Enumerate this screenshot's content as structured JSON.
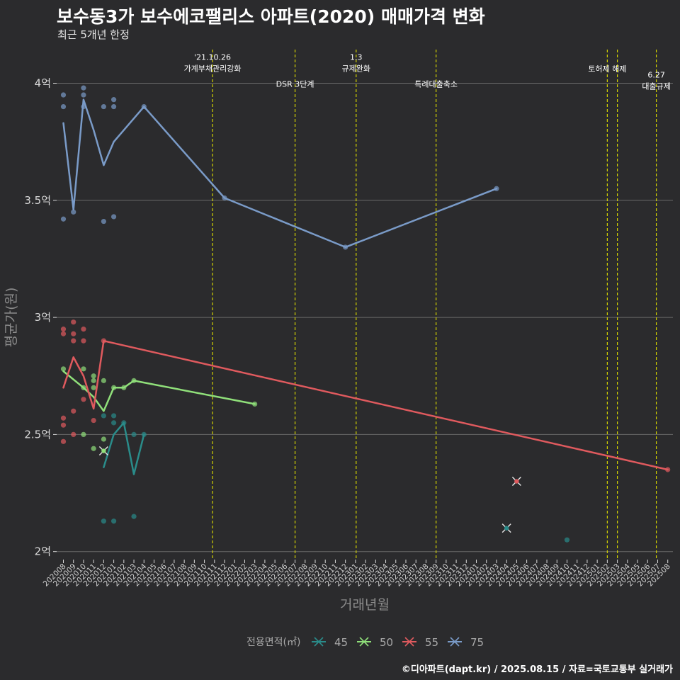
{
  "header": {
    "title": "보수동3가 보수에코팰리스 아파트(2020) 매매가격 변화",
    "subtitle": "최근 5개년 한정",
    "caption": "©디아파트(dapt.kr) / 2025.08.15 / 자료=국토교통부 실거래가"
  },
  "chart_data": {
    "type": "line",
    "xlabel": "거래년월",
    "ylabel": "평균가(원)",
    "ylim": [
      1.95,
      4.2
    ],
    "yticks": [
      {
        "value": 2.0,
        "label": "2억"
      },
      {
        "value": 2.5,
        "label": "2.5억"
      },
      {
        "value": 3.0,
        "label": "3억"
      },
      {
        "value": 3.5,
        "label": "3.5억"
      },
      {
        "value": 4.0,
        "label": "4억"
      }
    ],
    "x_start": "2020-08",
    "x_end": "2025-08",
    "grid": true,
    "legend": {
      "title": "전용면적(㎡)",
      "placement": "bottom",
      "entries": [
        {
          "label": "45",
          "color": "#2a8c8a"
        },
        {
          "label": "50",
          "color": "#90e07a"
        },
        {
          "label": "55",
          "color": "#e05a5e"
        },
        {
          "label": "75",
          "color": "#7a9bc8"
        }
      ]
    },
    "series": [
      {
        "name": "45",
        "color": "#2a8c8a",
        "line": [
          [
            "2020-12",
            2.36
          ],
          [
            "2021-01",
            2.5
          ],
          [
            "2021-02",
            2.55
          ],
          [
            "2021-03",
            2.33
          ],
          [
            "2021-04",
            2.5
          ]
        ],
        "points": [
          [
            "2020-12",
            2.58
          ],
          [
            "2020-12",
            2.13
          ],
          [
            "2021-01",
            2.58
          ],
          [
            "2021-01",
            2.55
          ],
          [
            "2021-01",
            2.13
          ],
          [
            "2021-02",
            2.55
          ],
          [
            "2021-03",
            2.5
          ],
          [
            "2021-03",
            2.15
          ],
          [
            "2021-04",
            2.5
          ],
          [
            "2024-10",
            2.05
          ]
        ],
        "crosses": [
          [
            "2024-04",
            2.1
          ]
        ]
      },
      {
        "name": "50",
        "color": "#90e07a",
        "line": [
          [
            "2020-08",
            2.77
          ],
          [
            "2020-10",
            2.7
          ],
          [
            "2020-11",
            2.66
          ],
          [
            "2020-12",
            2.6
          ],
          [
            "2021-01",
            2.7
          ],
          [
            "2021-02",
            2.7
          ],
          [
            "2021-03",
            2.73
          ],
          [
            "2022-03",
            2.63
          ]
        ],
        "points": [
          [
            "2020-08",
            2.78
          ],
          [
            "2020-10",
            2.78
          ],
          [
            "2020-10",
            2.7
          ],
          [
            "2020-10",
            2.5
          ],
          [
            "2020-11",
            2.75
          ],
          [
            "2020-11",
            2.73
          ],
          [
            "2020-11",
            2.7
          ],
          [
            "2020-11",
            2.44
          ],
          [
            "2020-12",
            2.73
          ],
          [
            "2020-12",
            2.48
          ],
          [
            "2021-01",
            2.7
          ],
          [
            "2021-02",
            2.7
          ],
          [
            "2021-03",
            2.73
          ],
          [
            "2022-03",
            2.63
          ]
        ],
        "crosses": [
          [
            "2020-12",
            2.43
          ]
        ]
      },
      {
        "name": "55",
        "color": "#e05a5e",
        "line": [
          [
            "2020-08",
            2.7
          ],
          [
            "2020-09",
            2.83
          ],
          [
            "2020-10",
            2.75
          ],
          [
            "2020-11",
            2.61
          ],
          [
            "2020-12",
            2.9
          ],
          [
            "2025-08",
            2.35
          ]
        ],
        "points": [
          [
            "2020-08",
            2.95
          ],
          [
            "2020-08",
            2.93
          ],
          [
            "2020-08",
            2.57
          ],
          [
            "2020-08",
            2.54
          ],
          [
            "2020-08",
            2.47
          ],
          [
            "2020-09",
            2.98
          ],
          [
            "2020-09",
            2.93
          ],
          [
            "2020-09",
            2.9
          ],
          [
            "2020-09",
            2.6
          ],
          [
            "2020-09",
            2.5
          ],
          [
            "2020-10",
            2.95
          ],
          [
            "2020-10",
            2.9
          ],
          [
            "2020-10",
            2.65
          ],
          [
            "2020-11",
            2.56
          ],
          [
            "2020-12",
            2.9
          ],
          [
            "2025-08",
            2.35
          ]
        ],
        "crosses": [
          [
            "2024-05",
            2.3
          ]
        ]
      },
      {
        "name": "75",
        "color": "#7a9bc8",
        "line": [
          [
            "2020-08",
            3.83
          ],
          [
            "2020-09",
            3.46
          ],
          [
            "2020-10",
            3.93
          ],
          [
            "2020-11",
            3.8
          ],
          [
            "2020-12",
            3.65
          ],
          [
            "2021-01",
            3.75
          ],
          [
            "2021-04",
            3.9
          ],
          [
            "2021-12",
            3.51
          ],
          [
            "2022-12",
            3.3
          ],
          [
            "2024-03",
            3.55
          ]
        ],
        "points": [
          [
            "2020-08",
            3.95
          ],
          [
            "2020-08",
            3.9
          ],
          [
            "2020-08",
            3.42
          ],
          [
            "2020-09",
            3.45
          ],
          [
            "2020-10",
            3.98
          ],
          [
            "2020-10",
            3.95
          ],
          [
            "2020-10",
            3.9
          ],
          [
            "2020-12",
            3.9
          ],
          [
            "2020-12",
            3.41
          ],
          [
            "2021-01",
            3.93
          ],
          [
            "2021-01",
            3.9
          ],
          [
            "2021-01",
            3.43
          ],
          [
            "2021-04",
            3.9
          ],
          [
            "2021-12",
            3.51
          ],
          [
            "2022-12",
            3.3
          ],
          [
            "2024-03",
            3.55
          ]
        ],
        "crosses": []
      }
    ],
    "events": [
      {
        "date": "2021-10-26",
        "labels": [
          "'21.10.26",
          "가계부채관리강화"
        ],
        "y": 4.075
      },
      {
        "date": "2022-07",
        "labels": [
          "DSR 3단계"
        ],
        "y": 3.985
      },
      {
        "date": "2023-01-03",
        "labels": [
          "1.3",
          "규제완화"
        ],
        "y": 4.075
      },
      {
        "date": "2023-09",
        "labels": [
          "특례대출축소"
        ],
        "y": 3.985
      },
      {
        "date": "2025-02",
        "labels": [
          "토허제 해제"
        ],
        "y": 4.05
      },
      {
        "date": "2025-03",
        "labels": [],
        "y": 4.05
      },
      {
        "date": "2025-06-27",
        "labels": [
          "6.27",
          "대출규제"
        ],
        "y": 4.0
      }
    ]
  }
}
